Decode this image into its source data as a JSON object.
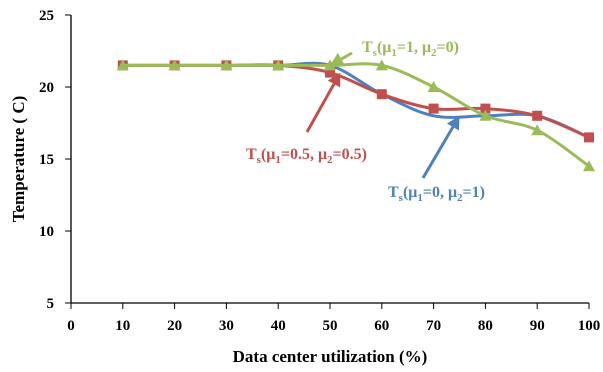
{
  "chart_data": {
    "type": "line",
    "xlabel": "Data center utilization (%)",
    "ylabel": "Temperature ( C)",
    "xlim": [
      0,
      100
    ],
    "ylim": [
      5,
      25
    ],
    "x_ticks": [
      0,
      10,
      20,
      30,
      40,
      50,
      60,
      70,
      80,
      90,
      100
    ],
    "y_ticks": [
      5,
      10,
      15,
      20,
      25
    ],
    "grid": false,
    "legend": "none (inline annotations with arrows)",
    "series": [
      {
        "color": "#4F81BD",
        "marker": "none",
        "smooth": true,
        "x": [
          10,
          20,
          30,
          40,
          50,
          60,
          70,
          80,
          90,
          100
        ],
        "y": [
          21.5,
          21.5,
          21.5,
          21.5,
          21.5,
          19.5,
          18.0,
          18.0,
          18.0,
          16.5
        ],
        "annotation": {
          "parts": [
            "T",
            "s",
            "(μ",
            "1",
            "=0, μ",
            "2",
            "=1)"
          ],
          "color": "#4F81BD",
          "points_to": [
            75,
            18.0
          ]
        }
      },
      {
        "color": "#C0504D",
        "marker": "square",
        "smooth": true,
        "x": [
          10,
          20,
          30,
          40,
          50,
          60,
          70,
          80,
          90,
          100
        ],
        "y": [
          21.5,
          21.5,
          21.5,
          21.5,
          21.0,
          19.5,
          18.5,
          18.5,
          18.0,
          16.5
        ],
        "annotation": {
          "parts": [
            "T",
            "s",
            "(μ",
            "1",
            "=0.5, μ",
            "2",
            "=0.5)"
          ],
          "color": "#C0504D",
          "points_to": [
            52,
            21.0
          ]
        }
      },
      {
        "color": "#9BBB59",
        "marker": "triangle",
        "smooth": true,
        "x": [
          10,
          20,
          30,
          40,
          50,
          60,
          70,
          80,
          90,
          100
        ],
        "y": [
          21.5,
          21.5,
          21.5,
          21.5,
          21.5,
          21.5,
          20.0,
          18.0,
          17.0,
          14.5
        ],
        "annotation": {
          "parts": [
            "T",
            "s",
            "(μ",
            "1",
            "=1, μ",
            "2",
            "=0)"
          ],
          "color": "#9BBB59",
          "points_to": [
            50,
            21.5
          ]
        }
      }
    ]
  }
}
